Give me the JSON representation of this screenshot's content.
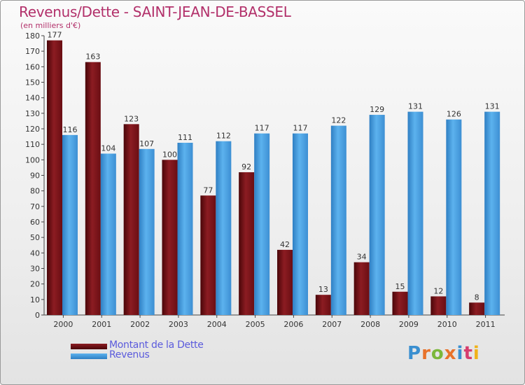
{
  "title": "Revenus/Dette - SAINT-JEAN-DE-BASSEL",
  "subtitle": "(en milliers d'€)",
  "logo": "Proxiti",
  "colors": {
    "debt": "#7a1218",
    "revenue": "#3a94d8",
    "title": "#b2306a",
    "legend_text": "#5b5bdc"
  },
  "chart_data": {
    "type": "bar",
    "categories": [
      "2000",
      "2001",
      "2002",
      "2003",
      "2004",
      "2005",
      "2006",
      "2007",
      "2008",
      "2009",
      "2010",
      "2011"
    ],
    "series": [
      {
        "name": "Montant de la Dette",
        "values": [
          177,
          163,
          123,
          100,
          77,
          92,
          42,
          13,
          34,
          15,
          12,
          8
        ]
      },
      {
        "name": "Revenus",
        "values": [
          116,
          104,
          107,
          111,
          112,
          117,
          117,
          122,
          129,
          131,
          126,
          131
        ]
      }
    ],
    "title": "Revenus/Dette - SAINT-JEAN-DE-BASSEL",
    "ylim": [
      0,
      180
    ],
    "yticks": [
      0,
      10,
      20,
      30,
      40,
      50,
      60,
      70,
      80,
      90,
      100,
      110,
      120,
      130,
      140,
      150,
      160,
      170,
      180
    ],
    "grid": false,
    "legend": "bottom-left"
  }
}
